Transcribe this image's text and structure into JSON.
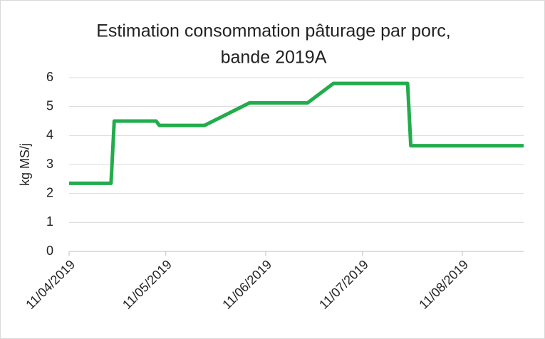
{
  "chart_data": {
    "type": "line",
    "title": [
      "Estimation consommation pâturage par porc,",
      "bande 2019A"
    ],
    "y_label": "kg MS/j",
    "x": [
      "11/04/2019",
      "24/04/2019",
      "25/04/2019",
      "08/05/2019",
      "09/05/2019",
      "23/05/2019",
      "06/06/2019",
      "24/06/2019",
      "02/07/2019",
      "25/07/2019",
      "26/07/2019",
      "30/08/2019"
    ],
    "series": [
      {
        "name": "kg MS/j",
        "color": "#22ac4c",
        "values": [
          2.35,
          2.35,
          4.5,
          4.5,
          4.35,
          4.35,
          5.13,
          5.13,
          5.8,
          5.8,
          3.65,
          3.65
        ]
      }
    ],
    "xlim": [
      "11/04/2019",
      "30/08/2019"
    ],
    "xticks": [
      "11/04/2019",
      "11/05/2019",
      "11/06/2019",
      "11/07/2019",
      "11/08/2019"
    ],
    "ylim": [
      0,
      6
    ],
    "yticks": [
      0,
      1,
      2,
      3,
      4,
      5,
      6
    ],
    "grid": true
  }
}
